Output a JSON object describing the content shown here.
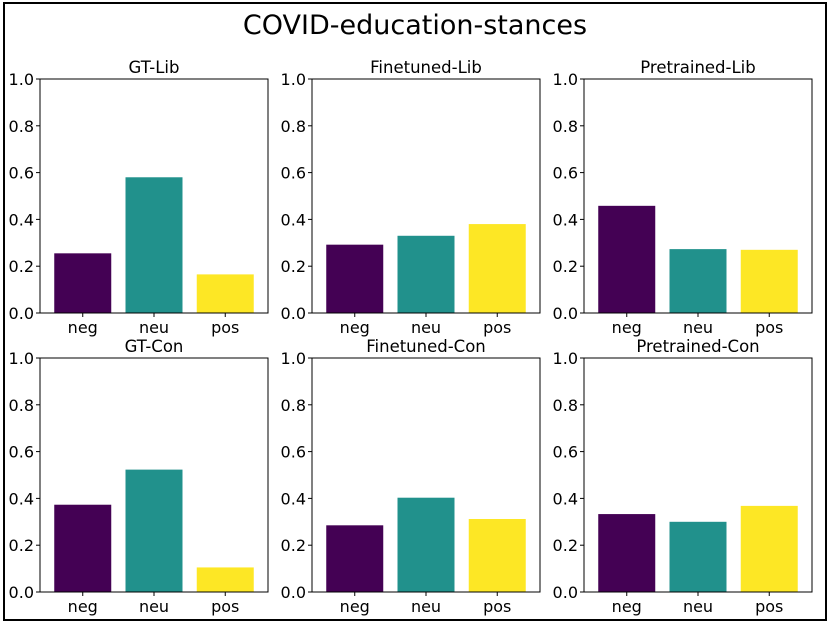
{
  "figure": {
    "title": "COVID-education-stances"
  },
  "colors": {
    "neg": "#440154",
    "neu": "#21918c",
    "pos": "#fde725"
  },
  "chart_data": [
    {
      "type": "bar",
      "title": "GT-Lib",
      "categories": [
        "neg",
        "neu",
        "pos"
      ],
      "values": [
        0.255,
        0.58,
        0.165
      ],
      "ylim": [
        0,
        1
      ],
      "yticks": [
        "0.0",
        "0.2",
        "0.4",
        "0.6",
        "0.8",
        "1.0"
      ],
      "xlabel": "",
      "ylabel": "",
      "grid": false
    },
    {
      "type": "bar",
      "title": "Finetuned-Lib",
      "categories": [
        "neg",
        "neu",
        "pos"
      ],
      "values": [
        0.292,
        0.33,
        0.38
      ],
      "ylim": [
        0,
        1
      ],
      "yticks": [
        "0.0",
        "0.2",
        "0.4",
        "0.6",
        "0.8",
        "1.0"
      ],
      "xlabel": "",
      "ylabel": "",
      "grid": false
    },
    {
      "type": "bar",
      "title": "Pretrained-Lib",
      "categories": [
        "neg",
        "neu",
        "pos"
      ],
      "values": [
        0.458,
        0.273,
        0.27
      ],
      "ylim": [
        0,
        1
      ],
      "yticks": [
        "0.0",
        "0.2",
        "0.4",
        "0.6",
        "0.8",
        "1.0"
      ],
      "xlabel": "",
      "ylabel": "",
      "grid": false
    },
    {
      "type": "bar",
      "title": "GT-Con",
      "categories": [
        "neg",
        "neu",
        "pos"
      ],
      "values": [
        0.373,
        0.523,
        0.105
      ],
      "ylim": [
        0,
        1
      ],
      "yticks": [
        "0.0",
        "0.2",
        "0.4",
        "0.6",
        "0.8",
        "1.0"
      ],
      "xlabel": "",
      "ylabel": "",
      "grid": false
    },
    {
      "type": "bar",
      "title": "Finetuned-Con",
      "categories": [
        "neg",
        "neu",
        "pos"
      ],
      "values": [
        0.285,
        0.403,
        0.312
      ],
      "ylim": [
        0,
        1
      ],
      "yticks": [
        "0.0",
        "0.2",
        "0.4",
        "0.6",
        "0.8",
        "1.0"
      ],
      "xlabel": "",
      "ylabel": "",
      "grid": false
    },
    {
      "type": "bar",
      "title": "Pretrained-Con",
      "categories": [
        "neg",
        "neu",
        "pos"
      ],
      "values": [
        0.333,
        0.3,
        0.368
      ],
      "ylim": [
        0,
        1
      ],
      "yticks": [
        "0.0",
        "0.2",
        "0.4",
        "0.6",
        "0.8",
        "1.0"
      ],
      "xlabel": "",
      "ylabel": "",
      "grid": false
    }
  ]
}
